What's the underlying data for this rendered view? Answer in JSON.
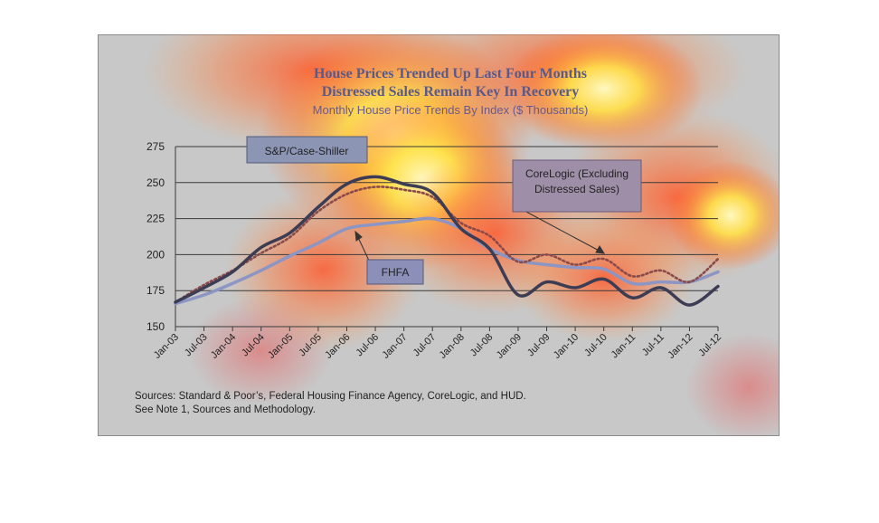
{
  "chart_data": {
    "type": "line",
    "title": "House Prices Trended Up Last Four Months",
    "subtitle": "Distressed Sales Remain Key In Recovery",
    "subtitle2": "Monthly House Price Trends By Index ($ Thousands)",
    "xlabel": "",
    "ylabel": "",
    "ylim": [
      150,
      275
    ],
    "y_ticks": [
      "150",
      "175",
      "200",
      "225",
      "250",
      "275"
    ],
    "x_ticks": [
      "Jan-03",
      "Jul-03",
      "Jan-04",
      "Jul-04",
      "Jan-05",
      "Jul-05",
      "Jan-06",
      "Jul-06",
      "Jan-07",
      "Jul-07",
      "Jan-08",
      "Jul-08",
      "Jan-09",
      "Jul-09",
      "Jan-10",
      "Jul-10",
      "Jan-11",
      "Jul-11",
      "Jan-12",
      "Jul-12"
    ],
    "grid": true,
    "series": [
      {
        "name": "S&P/Case-Shiller",
        "style": "solid-dark",
        "values": [
          167,
          177,
          188,
          205,
          215,
          233,
          249,
          254,
          249,
          243,
          218,
          204,
          172,
          181,
          177,
          183,
          170,
          177,
          165,
          178
        ]
      },
      {
        "name": "CoreLogic (Excluding Distressed Sales)",
        "style": "dotted",
        "values": [
          167,
          179,
          189,
          201,
          212,
          230,
          242,
          247,
          245,
          240,
          222,
          213,
          195,
          200,
          193,
          197,
          185,
          189,
          181,
          197
        ]
      },
      {
        "name": "FHFA",
        "style": "solid-light",
        "values": [
          166,
          172,
          180,
          189,
          199,
          208,
          218,
          221,
          223,
          225,
          218,
          204,
          196,
          193,
          191,
          190,
          180,
          181,
          181,
          188
        ]
      }
    ],
    "sources": "Sources:  Standard & Poor’s, Federal Housing Finance Agency, CoreLogic, and HUD.",
    "note": "See Note 1, Sources and Methodology."
  }
}
